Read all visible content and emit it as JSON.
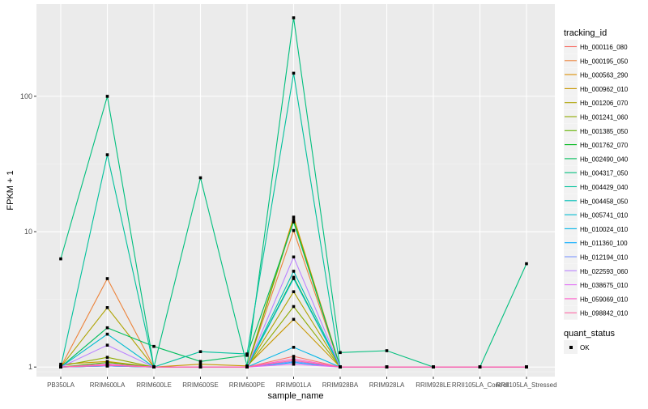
{
  "chart_data": {
    "type": "line",
    "xlabel": "sample_name",
    "ylabel": "FPKM + 1",
    "y_scale": "log10",
    "ylim": [
      0.85,
      480
    ],
    "y_ticks": [
      1,
      10,
      100
    ],
    "grid": true,
    "legend_position": "right",
    "categories": [
      "PB350LA",
      "RRIM600LA",
      "RRIM600LE",
      "RRIM600SE",
      "RRIM600PE",
      "RRIM901LA",
      "RRIM928BA",
      "RRIM928LA",
      "RRIM928LE",
      "RRII105LA_Control",
      "RRII105LA_Stressed"
    ],
    "series": [
      {
        "name": "Hb_000116_080",
        "color": "#F8766D",
        "values": [
          1,
          1.05,
          1,
          1,
          1,
          1.2,
          1,
          1,
          1,
          1,
          1
        ]
      },
      {
        "name": "Hb_000195_050",
        "color": "#EC8239",
        "values": [
          1,
          4.5,
          1,
          1,
          1,
          10.2,
          1,
          1,
          1,
          1,
          1
        ]
      },
      {
        "name": "Hb_000563_290",
        "color": "#DB8E00",
        "values": [
          1,
          1.02,
          1,
          1,
          1,
          12.8,
          1,
          1,
          1,
          1,
          1
        ]
      },
      {
        "name": "Hb_000962_010",
        "color": "#C79800",
        "values": [
          1.05,
          1.1,
          1,
          1.05,
          1.02,
          2.25,
          1,
          1,
          1,
          1,
          1
        ]
      },
      {
        "name": "Hb_001206_070",
        "color": "#AEA200",
        "values": [
          1,
          2.75,
          1,
          1,
          1,
          3.6,
          1,
          1,
          1,
          1,
          1
        ]
      },
      {
        "name": "Hb_001241_060",
        "color": "#8FAA00",
        "values": [
          1.02,
          1.18,
          1,
          1,
          1,
          2.8,
          1,
          1,
          1,
          1,
          1
        ]
      },
      {
        "name": "Hb_001385_050",
        "color": "#64B200",
        "values": [
          1,
          1.08,
          1,
          1,
          1,
          12.2,
          1,
          1,
          1,
          1,
          1
        ]
      },
      {
        "name": "Hb_001762_070",
        "color": "#00B81B",
        "values": [
          1,
          1.05,
          1,
          1,
          1,
          4.6,
          1,
          1,
          1,
          1,
          1
        ]
      },
      {
        "name": "Hb_002490_040",
        "color": "#00BD5C",
        "values": [
          1,
          1.95,
          1.42,
          1.1,
          1.22,
          11.8,
          1,
          1,
          1,
          1,
          1
        ]
      },
      {
        "name": "Hb_004317_050",
        "color": "#00BF7D",
        "values": [
          6.3,
          100,
          1,
          25,
          1.02,
          380,
          1.28,
          1.32,
          1,
          1,
          5.8
        ]
      },
      {
        "name": "Hb_004429_040",
        "color": "#00C19C",
        "values": [
          1,
          37,
          1,
          1.3,
          1.25,
          148,
          1,
          1,
          1,
          1,
          1
        ]
      },
      {
        "name": "Hb_004458_050",
        "color": "#00C0B8",
        "values": [
          1,
          1.02,
          1,
          1,
          1,
          5.1,
          1,
          1,
          1,
          1,
          1
        ]
      },
      {
        "name": "Hb_005741_010",
        "color": "#00BCD1",
        "values": [
          1,
          1.75,
          1,
          1,
          1,
          4.5,
          1,
          1,
          1,
          1,
          1
        ]
      },
      {
        "name": "Hb_010024_010",
        "color": "#00B5E7",
        "values": [
          1,
          1.03,
          1,
          1,
          1,
          1.4,
          1,
          1,
          1,
          1,
          1
        ]
      },
      {
        "name": "Hb_011360_100",
        "color": "#00A9FF",
        "values": [
          1,
          1.02,
          1,
          1,
          1,
          1.08,
          1,
          1,
          1,
          1,
          1
        ]
      },
      {
        "name": "Hb_012194_010",
        "color": "#7F96FF",
        "values": [
          1,
          1.02,
          1,
          1,
          1,
          1.1,
          1,
          1,
          1,
          1,
          1
        ]
      },
      {
        "name": "Hb_022593_060",
        "color": "#BB83FF",
        "values": [
          1,
          1.45,
          1,
          1,
          1,
          6.5,
          1,
          1,
          1,
          1,
          1
        ]
      },
      {
        "name": "Hb_038675_010",
        "color": "#E26EF7",
        "values": [
          1,
          1.05,
          1,
          1,
          1,
          1.05,
          1,
          1,
          1,
          1,
          1
        ]
      },
      {
        "name": "Hb_059069_010",
        "color": "#FF61CC",
        "values": [
          1,
          1.04,
          1,
          1,
          1,
          1.15,
          1,
          1,
          1,
          1,
          1
        ]
      },
      {
        "name": "Hb_098842_010",
        "color": "#FF67A4",
        "values": [
          1,
          1.03,
          1,
          1,
          1,
          1.12,
          1,
          1,
          1,
          1,
          1
        ]
      }
    ],
    "legend": {
      "title": "tracking_id",
      "shape_title": "quant_status",
      "shape_entries": [
        "OK"
      ]
    },
    "colors": {
      "panel_background": "#EBEBEB",
      "grid_major": "#FFFFFF",
      "point": "#000000",
      "axis_text": "#4D4D4D"
    }
  }
}
